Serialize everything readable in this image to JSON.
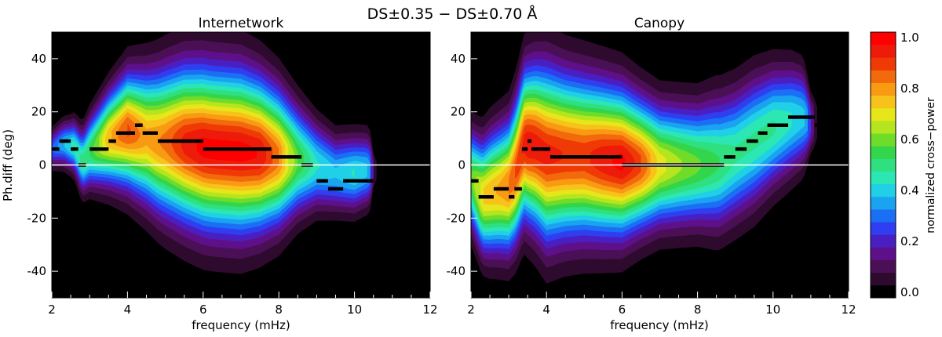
{
  "figure": {
    "title": "DS±0.35 − DS±0.70 Å"
  },
  "chart_data": [
    {
      "type": "heatmap",
      "title": "Internetwork",
      "xlabel": "frequency (mHz)",
      "ylabel": "Ph.diff (deg)",
      "xlim": [
        2,
        12
      ],
      "ylim": [
        -50,
        50
      ],
      "xticks": [
        2,
        4,
        6,
        8,
        10,
        12
      ],
      "yticks": [
        -40,
        -20,
        0,
        20,
        40
      ],
      "zero_line": 0,
      "power_ridge": [
        [
          2.0,
          6
        ],
        [
          2.3,
          8
        ],
        [
          2.6,
          7
        ],
        [
          2.8,
          1
        ],
        [
          3.0,
          5
        ],
        [
          3.3,
          8
        ],
        [
          3.5,
          10
        ],
        [
          4.0,
          13
        ],
        [
          4.4,
          11
        ],
        [
          4.8,
          9
        ],
        [
          5.5,
          8
        ],
        [
          6.2,
          6
        ],
        [
          7.0,
          5
        ],
        [
          7.6,
          4
        ],
        [
          8.0,
          3
        ],
        [
          8.5,
          2
        ],
        [
          9.0,
          0
        ],
        [
          9.5,
          -3
        ],
        [
          10.0,
          -3
        ],
        [
          10.3,
          -2
        ],
        [
          10.5,
          -2
        ]
      ],
      "power_width": [
        [
          2.0,
          3.5
        ],
        [
          2.5,
          4.5
        ],
        [
          3.0,
          6.5
        ],
        [
          3.5,
          8.5
        ],
        [
          4.0,
          10.5
        ],
        [
          4.5,
          12
        ],
        [
          5.0,
          13.5
        ],
        [
          5.5,
          14.5
        ],
        [
          6.0,
          15
        ],
        [
          6.5,
          15
        ],
        [
          7.0,
          15
        ],
        [
          7.5,
          14
        ],
        [
          8.0,
          12.5
        ],
        [
          8.5,
          10
        ],
        [
          9.0,
          8
        ],
        [
          9.5,
          7
        ],
        [
          10.0,
          7
        ],
        [
          10.4,
          6.5
        ],
        [
          10.5,
          3
        ],
        [
          11.0,
          1
        ],
        [
          12.0,
          0.5
        ]
      ],
      "power_peak": [
        [
          2.0,
          0.3
        ],
        [
          2.5,
          0.45
        ],
        [
          3.0,
          0.55
        ],
        [
          3.5,
          0.78
        ],
        [
          4.0,
          0.9
        ],
        [
          4.5,
          0.8
        ],
        [
          5.0,
          0.85
        ],
        [
          5.5,
          0.95
        ],
        [
          6.0,
          1.0
        ],
        [
          6.5,
          1.0
        ],
        [
          7.0,
          1.0
        ],
        [
          7.5,
          0.98
        ],
        [
          8.0,
          0.85
        ],
        [
          8.5,
          0.6
        ],
        [
          9.0,
          0.45
        ],
        [
          9.5,
          0.4
        ],
        [
          10.0,
          0.45
        ],
        [
          10.4,
          0.4
        ],
        [
          10.6,
          0.05
        ],
        [
          11.0,
          0.0
        ],
        [
          12.0,
          0.0
        ]
      ],
      "phase_steps": [
        [
          2.0,
          2.2,
          6
        ],
        [
          2.2,
          2.5,
          9
        ],
        [
          2.5,
          2.7,
          6
        ],
        [
          2.7,
          2.9,
          0
        ],
        [
          3.0,
          3.5,
          6
        ],
        [
          3.5,
          3.7,
          9
        ],
        [
          3.7,
          4.2,
          12
        ],
        [
          4.2,
          4.4,
          15
        ],
        [
          4.4,
          4.8,
          12
        ],
        [
          4.8,
          6.0,
          9
        ],
        [
          6.0,
          7.8,
          6
        ],
        [
          7.8,
          8.6,
          3
        ],
        [
          8.6,
          8.9,
          0
        ],
        [
          9.0,
          9.3,
          -6
        ],
        [
          9.3,
          9.7,
          -9
        ],
        [
          9.7,
          10.5,
          -6
        ]
      ]
    },
    {
      "type": "heatmap",
      "title": "Canopy",
      "xlabel": "frequency (mHz)",
      "ylabel": "",
      "xlim": [
        2,
        12
      ],
      "ylim": [
        -50,
        50
      ],
      "xticks": [
        2,
        4,
        6,
        8,
        10,
        12
      ],
      "yticks": [
        -40,
        -20,
        0,
        20,
        40
      ],
      "zero_line": 0,
      "power_ridge": [
        [
          2.0,
          -5
        ],
        [
          2.3,
          -12
        ],
        [
          2.6,
          -10
        ],
        [
          3.0,
          -8
        ],
        [
          3.2,
          -2
        ],
        [
          3.4,
          8
        ],
        [
          3.7,
          7
        ],
        [
          4.0,
          4
        ],
        [
          5.0,
          3
        ],
        [
          6.0,
          1
        ],
        [
          7.0,
          0
        ],
        [
          8.0,
          0
        ],
        [
          8.6,
          1
        ],
        [
          9.0,
          4
        ],
        [
          9.5,
          9
        ],
        [
          10.0,
          14
        ],
        [
          10.5,
          17
        ],
        [
          10.8,
          18
        ],
        [
          11.0,
          16
        ]
      ],
      "power_width": [
        [
          2.0,
          9
        ],
        [
          2.5,
          11
        ],
        [
          3.0,
          12
        ],
        [
          3.5,
          14
        ],
        [
          4.0,
          16
        ],
        [
          4.5,
          15
        ],
        [
          5.0,
          14.5
        ],
        [
          5.5,
          14
        ],
        [
          6.0,
          13.5
        ],
        [
          6.5,
          12
        ],
        [
          7.0,
          11
        ],
        [
          7.5,
          11
        ],
        [
          8.0,
          11
        ],
        [
          8.5,
          12
        ],
        [
          9.0,
          12
        ],
        [
          9.5,
          12
        ],
        [
          10.0,
          11
        ],
        [
          10.5,
          10
        ],
        [
          10.8,
          9
        ],
        [
          11.0,
          5
        ],
        [
          12.0,
          1
        ]
      ],
      "power_peak": [
        [
          2.0,
          0.6
        ],
        [
          2.3,
          0.75
        ],
        [
          2.8,
          0.8
        ],
        [
          3.2,
          0.9
        ],
        [
          3.5,
          0.97
        ],
        [
          4.0,
          0.95
        ],
        [
          4.5,
          0.93
        ],
        [
          5.0,
          0.92
        ],
        [
          5.5,
          0.97
        ],
        [
          6.0,
          1.0
        ],
        [
          6.5,
          0.9
        ],
        [
          7.0,
          0.72
        ],
        [
          7.5,
          0.65
        ],
        [
          8.0,
          0.6
        ],
        [
          8.5,
          0.55
        ],
        [
          9.0,
          0.5
        ],
        [
          9.5,
          0.5
        ],
        [
          10.0,
          0.5
        ],
        [
          10.5,
          0.45
        ],
        [
          10.9,
          0.4
        ],
        [
          11.2,
          0.05
        ],
        [
          12.0,
          0.0
        ]
      ],
      "phase_steps": [
        [
          2.0,
          2.2,
          -6
        ],
        [
          2.2,
          2.6,
          -12
        ],
        [
          2.6,
          3.0,
          -9
        ],
        [
          3.0,
          3.15,
          -12
        ],
        [
          3.15,
          3.35,
          -9
        ],
        [
          3.35,
          3.5,
          6
        ],
        [
          3.5,
          3.6,
          9
        ],
        [
          3.6,
          4.1,
          6
        ],
        [
          4.1,
          6.0,
          3
        ],
        [
          6.0,
          8.7,
          0
        ],
        [
          8.7,
          9.0,
          3
        ],
        [
          9.0,
          9.3,
          6
        ],
        [
          9.3,
          9.6,
          9
        ],
        [
          9.6,
          9.85,
          12
        ],
        [
          9.85,
          10.4,
          15
        ],
        [
          10.4,
          11.1,
          18
        ],
        [
          11.1,
          11.2,
          15
        ]
      ]
    }
  ],
  "colorbar": {
    "label": "normalized cross−power",
    "ticks": [
      "0.0",
      "0.2",
      "0.4",
      "0.6",
      "0.8",
      "1.0"
    ],
    "levels": [
      "#000000",
      "#2d0a2e",
      "#4b0f56",
      "#5e0f8a",
      "#4a1fc2",
      "#2f3ef0",
      "#1a6ff5",
      "#1aa3f0",
      "#1fd0e6",
      "#2ce6b4",
      "#2ee080",
      "#33d64a",
      "#6fdc2a",
      "#b4e51e",
      "#e6e61a",
      "#f7c21a",
      "#f89a12",
      "#f36a0c",
      "#ef3a06",
      "#ee1a0a",
      "#ff0000"
    ]
  }
}
